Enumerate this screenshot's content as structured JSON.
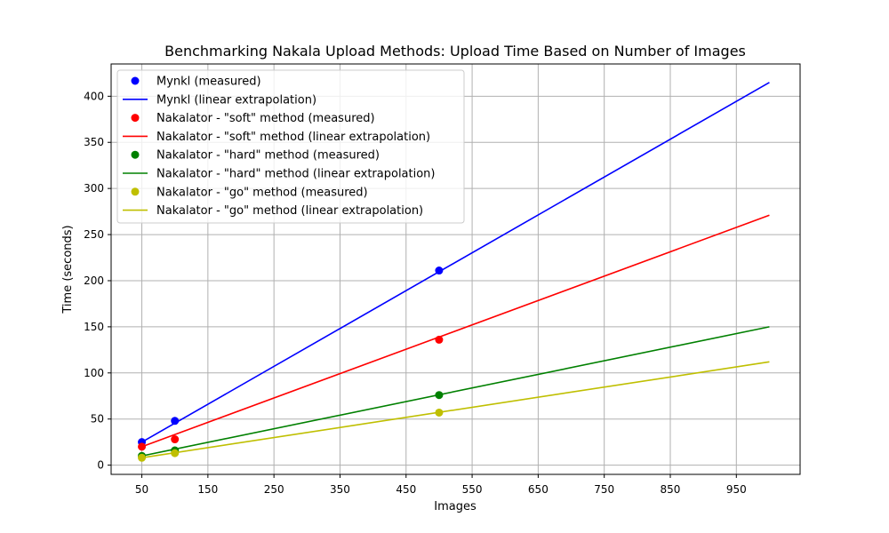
{
  "chart_data": {
    "type": "line",
    "title": "Benchmarking Nakala Upload Methods: Upload Time Based on Number of Images",
    "xlabel": "Images",
    "ylabel": "Time (seconds)",
    "xlim": [
      3.5,
      1046.5
    ],
    "ylim": [
      -10,
      435
    ],
    "xticks": [
      50,
      150,
      250,
      350,
      450,
      550,
      650,
      750,
      850,
      950
    ],
    "yticks": [
      0,
      50,
      100,
      150,
      200,
      250,
      300,
      350,
      400
    ],
    "grid": true,
    "legend_position": "top-left",
    "series": [
      {
        "name": "Mynkl",
        "measured_label": "Mynkl (measured)",
        "line_label": "Mynkl (linear extrapolation)",
        "color": "#0000ff",
        "measured": {
          "x": [
            50,
            100,
            500
          ],
          "y": [
            25,
            48,
            211
          ]
        },
        "extrapolation": {
          "x": [
            50,
            1000
          ],
          "y": [
            25,
            415
          ]
        }
      },
      {
        "name": "Nakalator - \"soft\" method",
        "measured_label": "Nakalator - \"soft\" method (measured)",
        "line_label": "Nakalator - \"soft\" method (linear extrapolation)",
        "color": "#ff0000",
        "measured": {
          "x": [
            50,
            100,
            500
          ],
          "y": [
            20,
            28,
            136
          ]
        },
        "extrapolation": {
          "x": [
            50,
            1000
          ],
          "y": [
            20,
            271
          ]
        }
      },
      {
        "name": "Nakalator - \"hard\" method",
        "measured_label": "Nakalator - \"hard\" method (measured)",
        "line_label": "Nakalator - \"hard\" method  (linear extrapolation)",
        "color": "#008000",
        "measured": {
          "x": [
            50,
            100,
            500
          ],
          "y": [
            10,
            16,
            76
          ]
        },
        "extrapolation": {
          "x": [
            50,
            1000
          ],
          "y": [
            10,
            150
          ]
        }
      },
      {
        "name": "Nakalator - \"go\" method",
        "measured_label": "Nakalator - \"go\" method (measured)",
        "line_label": "Nakalator - \"go\" method (linear extrapolation)",
        "color": "#bfbf00",
        "measured": {
          "x": [
            50,
            100,
            500
          ],
          "y": [
            8,
            13,
            57
          ]
        },
        "extrapolation": {
          "x": [
            50,
            1000
          ],
          "y": [
            8,
            112
          ]
        }
      }
    ]
  }
}
